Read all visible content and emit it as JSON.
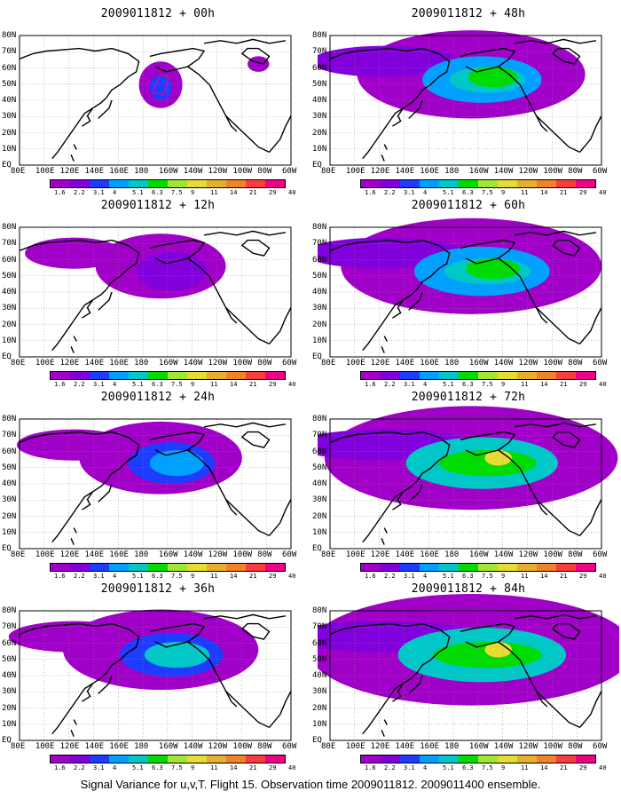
{
  "colors": [
    "#a000c8",
    "#8200dc",
    "#1e3cff",
    "#00a0ff",
    "#00c8c8",
    "#00dc00",
    "#a0e632",
    "#e6dc32",
    "#e6af2d",
    "#f08228",
    "#fa3c3c",
    "#f00082"
  ],
  "colorbar_labels": [
    "1.6",
    "2.2",
    "3.1",
    "4",
    "5.1",
    "6.3",
    "7.5",
    "9",
    "11",
    "14",
    "21",
    "29",
    "40"
  ],
  "lat_labels": [
    "80N",
    "70N",
    "60N",
    "50N",
    "40N",
    "30N",
    "20N",
    "10N",
    "EQ"
  ],
  "lon_labels": [
    "80E",
    "100E",
    "120E",
    "140E",
    "160E",
    "180",
    "160W",
    "140W",
    "120W",
    "100W",
    "80W",
    "60W"
  ],
  "panels": [
    {
      "id": "p00",
      "title": "2009011812 + 00h",
      "level": 0
    },
    {
      "id": "p48",
      "title": "2009011812 + 48h",
      "level": 4
    },
    {
      "id": "p12",
      "title": "2009011812 + 12h",
      "level": 1
    },
    {
      "id": "p60",
      "title": "2009011812 + 60h",
      "level": 5
    },
    {
      "id": "p24",
      "title": "2009011812 + 24h",
      "level": 2
    },
    {
      "id": "p72",
      "title": "2009011812 + 72h",
      "level": 6
    },
    {
      "id": "p36",
      "title": "2009011812 + 36h",
      "level": 3
    },
    {
      "id": "p84",
      "title": "2009011812 + 84h",
      "level": 7
    }
  ],
  "caption": "Signal Variance for u,v,T. Flight 15. Observation time 2009011812. 2009011400 ensemble."
}
